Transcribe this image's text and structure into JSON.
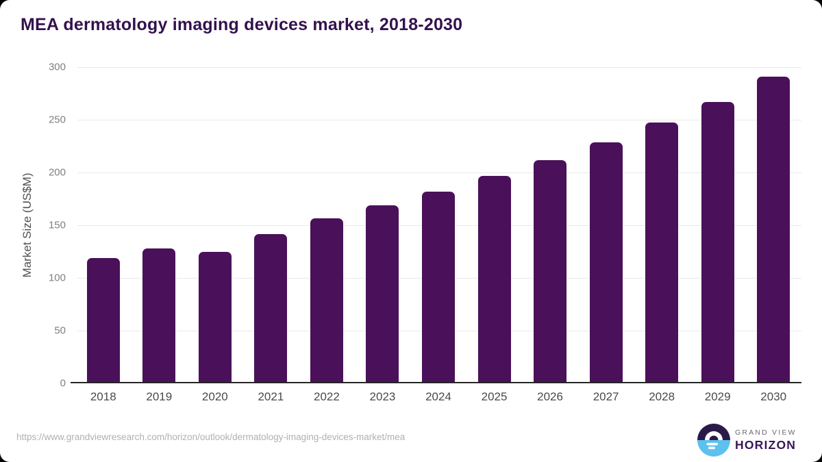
{
  "title": "MEA dermatology imaging devices market, 2018-2030",
  "chart_data": {
    "type": "bar",
    "categories": [
      "2018",
      "2019",
      "2020",
      "2021",
      "2022",
      "2023",
      "2024",
      "2025",
      "2026",
      "2027",
      "2028",
      "2029",
      "2030"
    ],
    "values": [
      118,
      127,
      124,
      141,
      156,
      168,
      181,
      196,
      211,
      228,
      247,
      267,
      291
    ],
    "title": "MEA dermatology imaging devices market, 2018-2030",
    "xlabel": "",
    "ylabel": "Market Size (US$M)",
    "ylim": [
      0,
      300
    ],
    "yticks": [
      0,
      50,
      100,
      150,
      200,
      250,
      300
    ],
    "grid": true,
    "legend": false,
    "bar_color": "#4a1059"
  },
  "footer": {
    "url": "https://www.grandviewresearch.com/horizon/outlook/dermatology-imaging-devices-market/mea",
    "logo": {
      "line1": "GRAND VIEW",
      "line2": "HORIZON"
    }
  },
  "colors": {
    "bar": "#4a1059",
    "title_text": "#33114e",
    "gridline": "#e9e9ea",
    "axis_line": "#262626",
    "y_tick_text": "#7f7f7f",
    "x_tick_text": "#4a4a4a",
    "url_text": "#b0b0b0",
    "logo_dark": "#2b1a47",
    "logo_blue": "#5cc1ee",
    "logo_text_dark": "#371659",
    "logo_text_gray": "#6a6575",
    "card_background": "#ffffff"
  }
}
